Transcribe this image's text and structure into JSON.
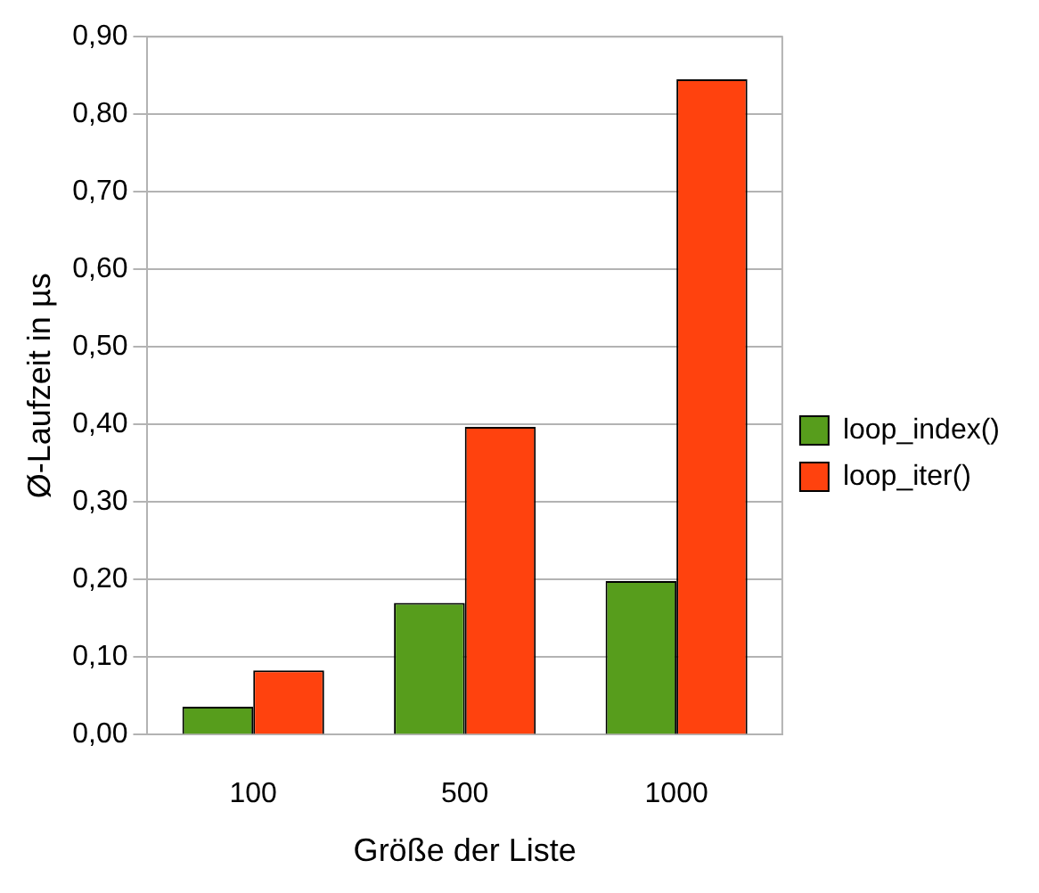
{
  "chart_data": {
    "type": "bar",
    "xlabel": "Größe der Liste",
    "ylabel": "Ø-Laufzeit in µs",
    "categories": [
      "100",
      "500",
      "1000"
    ],
    "series": [
      {
        "name": "loop_index()",
        "color": "#579d1c",
        "values": [
          0.036,
          0.17,
          0.198
        ]
      },
      {
        "name": "loop_iter()",
        "color": "#ff420e",
        "values": [
          0.083,
          0.397,
          0.845
        ]
      }
    ],
    "ylim": [
      0,
      0.9
    ],
    "yticks": [
      {
        "value": 0,
        "label": "0,00"
      },
      {
        "value": 0.1,
        "label": "0,10"
      },
      {
        "value": 0.2,
        "label": "0,20"
      },
      {
        "value": 0.3,
        "label": "0,30"
      },
      {
        "value": 0.4,
        "label": "0,40"
      },
      {
        "value": 0.5,
        "label": "0,50"
      },
      {
        "value": 0.6,
        "label": "0,60"
      },
      {
        "value": 0.7,
        "label": "0,70"
      },
      {
        "value": 0.8,
        "label": "0,80"
      },
      {
        "value": 0.9,
        "label": "0,90"
      }
    ],
    "grid": "y",
    "legend": "right"
  }
}
